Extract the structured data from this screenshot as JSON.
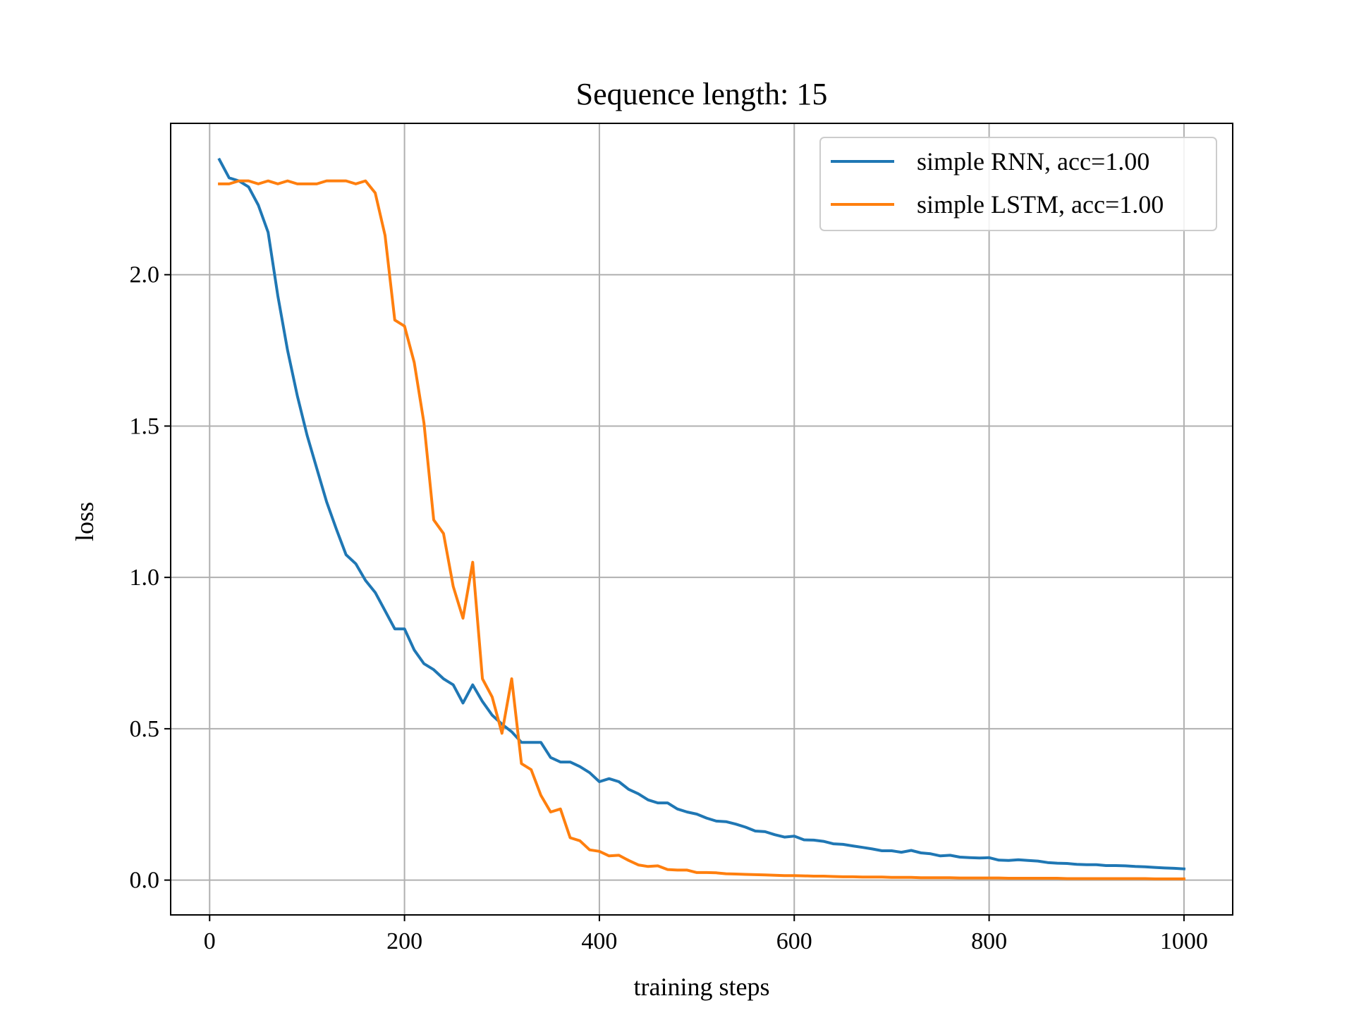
{
  "chart_data": {
    "type": "line",
    "title": "Sequence length: 15",
    "xlabel": "training steps",
    "ylabel": "loss",
    "xlim": [
      -40,
      1050
    ],
    "ylim": [
      -0.115,
      2.5
    ],
    "xticks": [
      0,
      200,
      400,
      600,
      800,
      1000
    ],
    "xtick_labels": [
      "0",
      "200",
      "400",
      "600",
      "800",
      "1000"
    ],
    "yticks": [
      0.0,
      0.5,
      1.0,
      1.5,
      2.0
    ],
    "ytick_labels": [
      "0.0",
      "0.5",
      "1.0",
      "1.5",
      "2.0"
    ],
    "grid": true,
    "legend_position": "top-right",
    "x": [
      10,
      20,
      30,
      40,
      50,
      60,
      70,
      80,
      90,
      100,
      110,
      120,
      130,
      140,
      150,
      160,
      170,
      180,
      190,
      200,
      210,
      220,
      230,
      240,
      250,
      260,
      270,
      280,
      290,
      300,
      310,
      320,
      330,
      340,
      350,
      360,
      370,
      380,
      390,
      400,
      410,
      420,
      430,
      440,
      450,
      460,
      470,
      480,
      490,
      500,
      510,
      520,
      530,
      540,
      550,
      560,
      570,
      580,
      590,
      600,
      610,
      620,
      630,
      640,
      650,
      660,
      670,
      680,
      690,
      700,
      710,
      720,
      730,
      740,
      750,
      760,
      770,
      780,
      790,
      800,
      810,
      820,
      830,
      840,
      850,
      860,
      870,
      880,
      890,
      900,
      910,
      920,
      930,
      940,
      950,
      960,
      970,
      980,
      990,
      1000
    ],
    "series": [
      {
        "name": "simple RNN, acc=1.00",
        "color": "#1f77b4",
        "values": [
          2.38,
          2.32,
          2.31,
          2.29,
          2.23,
          2.14,
          1.93,
          1.75,
          1.6,
          1.47,
          1.36,
          1.25,
          1.16,
          1.075,
          1.045,
          0.99,
          0.95,
          0.89,
          0.83,
          0.83,
          0.76,
          0.715,
          0.695,
          0.665,
          0.645,
          0.585,
          0.645,
          0.59,
          0.545,
          0.515,
          0.49,
          0.455,
          0.455,
          0.455,
          0.405,
          0.39,
          0.39,
          0.375,
          0.355,
          0.325,
          0.335,
          0.325,
          0.3,
          0.285,
          0.265,
          0.255,
          0.255,
          0.235,
          0.225,
          0.218,
          0.205,
          0.195,
          0.193,
          0.185,
          0.175,
          0.162,
          0.16,
          0.15,
          0.142,
          0.145,
          0.133,
          0.132,
          0.128,
          0.12,
          0.118,
          0.113,
          0.108,
          0.103,
          0.097,
          0.097,
          0.092,
          0.098,
          0.09,
          0.087,
          0.08,
          0.082,
          0.076,
          0.074,
          0.073,
          0.074,
          0.066,
          0.065,
          0.067,
          0.065,
          0.063,
          0.058,
          0.056,
          0.055,
          0.052,
          0.051,
          0.051,
          0.048,
          0.048,
          0.047,
          0.045,
          0.044,
          0.042,
          0.04,
          0.039,
          0.037
        ]
      },
      {
        "name": "simple LSTM, acc=1.00",
        "color": "#ff7f0e",
        "values": [
          2.3,
          2.3,
          2.31,
          2.31,
          2.3,
          2.31,
          2.3,
          2.31,
          2.3,
          2.3,
          2.3,
          2.31,
          2.31,
          2.31,
          2.3,
          2.31,
          2.27,
          2.13,
          1.85,
          1.83,
          1.71,
          1.51,
          1.19,
          1.145,
          0.97,
          0.865,
          1.05,
          0.665,
          0.605,
          0.485,
          0.665,
          0.385,
          0.365,
          0.28,
          0.225,
          0.235,
          0.14,
          0.13,
          0.1,
          0.095,
          0.08,
          0.082,
          0.065,
          0.05,
          0.045,
          0.047,
          0.035,
          0.033,
          0.033,
          0.025,
          0.025,
          0.024,
          0.021,
          0.02,
          0.019,
          0.018,
          0.017,
          0.016,
          0.015,
          0.015,
          0.014,
          0.013,
          0.013,
          0.012,
          0.011,
          0.011,
          0.01,
          0.01,
          0.01,
          0.009,
          0.009,
          0.009,
          0.008,
          0.008,
          0.008,
          0.008,
          0.007,
          0.007,
          0.007,
          0.007,
          0.007,
          0.006,
          0.006,
          0.006,
          0.006,
          0.006,
          0.006,
          0.005,
          0.005,
          0.005,
          0.005,
          0.005,
          0.005,
          0.005,
          0.005,
          0.005,
          0.004,
          0.004,
          0.004,
          0.004
        ]
      }
    ]
  }
}
